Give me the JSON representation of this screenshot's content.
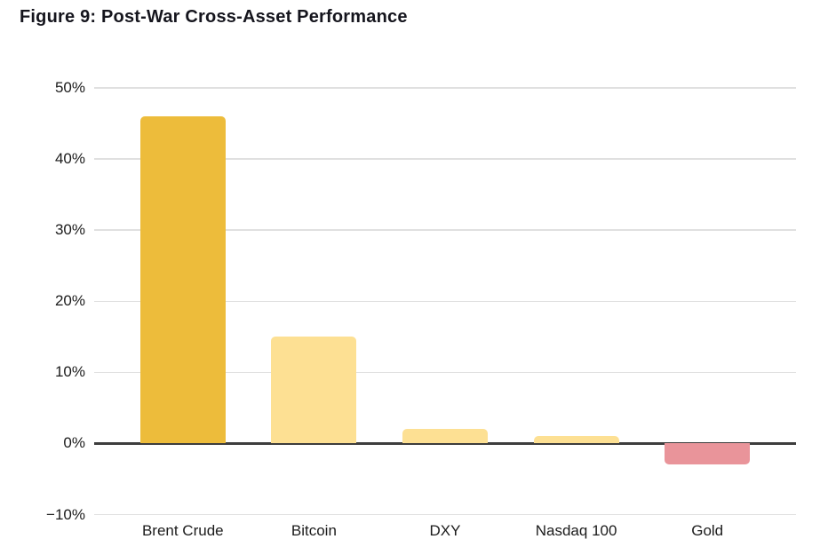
{
  "chart_data": {
    "type": "bar",
    "title": "Figure 9: Post-War Cross-Asset Performance",
    "categories": [
      "Brent Crude",
      "Bitcoin",
      "DXY",
      "Nasdaq 100",
      "Gold"
    ],
    "values": [
      46,
      15,
      2,
      1,
      -3
    ],
    "unit": "%",
    "xlabel": "",
    "ylabel": "",
    "ylim": [
      -10,
      50
    ],
    "yticks": [
      50,
      40,
      30,
      20,
      10,
      0,
      -10
    ],
    "ytick_labels": [
      "50%",
      "40%",
      "30%",
      "20%",
      "10%",
      "0%",
      "−10%"
    ],
    "grid": true,
    "legend": false,
    "bar_colors": [
      "#EDBC3B",
      "#FDE093",
      "#FDE093",
      "#FDE093",
      "#E9949A"
    ],
    "colors": {
      "grid": "#E0E0E0",
      "zero_line": "#3D3D3D",
      "text": "#1B1B1B",
      "title": "#15151D",
      "background": "#FFFFFF"
    }
  }
}
